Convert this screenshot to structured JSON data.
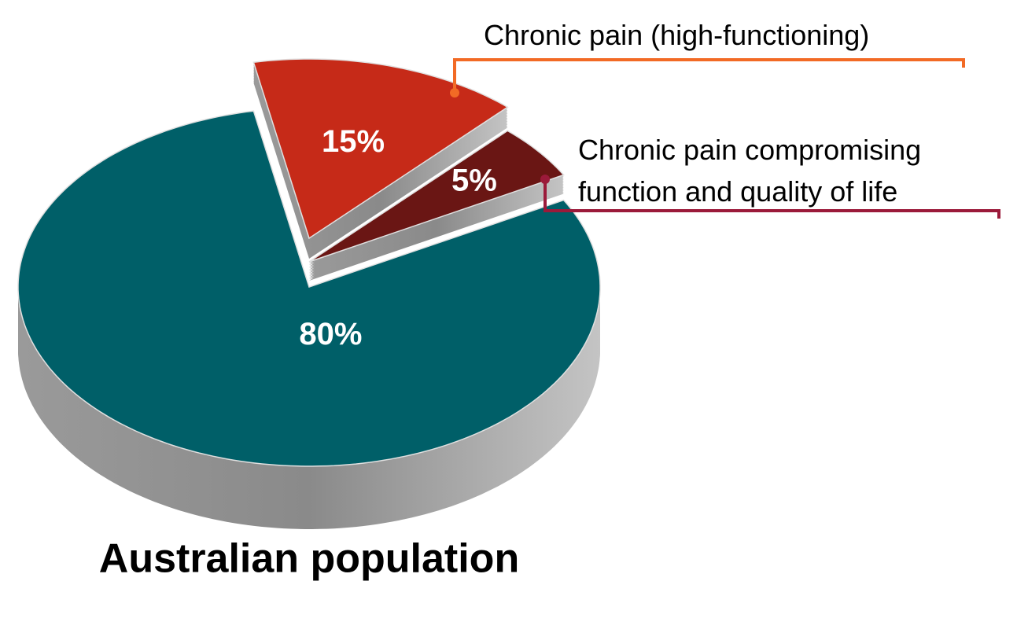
{
  "chart_data": {
    "type": "pie",
    "title": "Australian population",
    "categories": [
      "Chronic pain (high-functioning)",
      "Chronic pain compromising function and quality of life",
      null
    ],
    "values": [
      15,
      5,
      80
    ],
    "value_labels": [
      "15%",
      "5%",
      "80%"
    ],
    "colors": [
      "#c62a18",
      "#6a1614",
      "#005f68"
    ]
  }
}
